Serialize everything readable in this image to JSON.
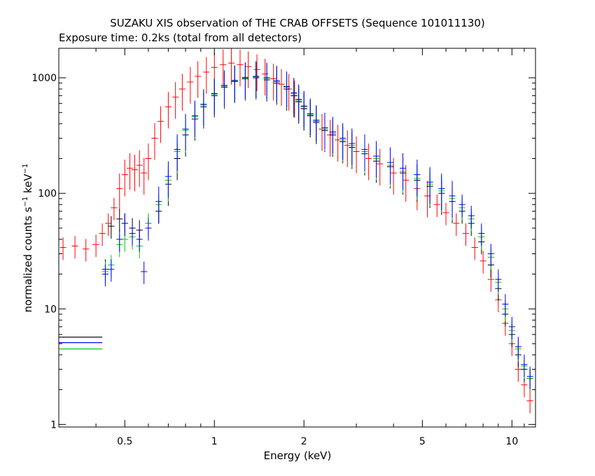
{
  "chart_data": {
    "type": "scatter",
    "title": "SUZAKU XIS observation of THE CRAB OFFSETS (Sequence 101011130)",
    "subtitle": "Exposure time: 0.2ks (total from all detectors)",
    "xlabel": "Energy (keV)",
    "ylabel_main": "normalized counts s",
    "ylabel_exp1": "−1",
    "ylabel_mid": " keV",
    "ylabel_exp2": "−1",
    "x_scale": "log",
    "y_scale": "log",
    "xlim": [
      0.3,
      12
    ],
    "ylim": [
      0.95,
      1800
    ],
    "x_tick_labels": [
      {
        "value": 0.5,
        "label": "0.5"
      },
      {
        "value": 1,
        "label": "1"
      },
      {
        "value": 2,
        "label": "2"
      },
      {
        "value": 5,
        "label": "5"
      },
      {
        "value": 10,
        "label": "10"
      }
    ],
    "y_tick_labels": [
      {
        "value": 1,
        "label": "1"
      },
      {
        "value": 10,
        "label": "10"
      },
      {
        "value": 100,
        "label": "100"
      },
      {
        "value": 1000,
        "label": "1000"
      }
    ],
    "grid": false,
    "series": [
      {
        "color": "#ff0000",
        "x": [
          0.31,
          0.34,
          0.37,
          0.4,
          0.42,
          0.44,
          0.46,
          0.48,
          0.5,
          0.52,
          0.54,
          0.56,
          0.58,
          0.6,
          0.63,
          0.66,
          0.7,
          0.74,
          0.78,
          0.83,
          0.88,
          0.94,
          1.0,
          1.07,
          1.14,
          1.22,
          1.3,
          1.39,
          1.48,
          1.58,
          1.68,
          1.78,
          1.86,
          1.92,
          2.0,
          2.1,
          2.2,
          2.3,
          2.45,
          2.6,
          2.8,
          3.0,
          3.3,
          3.6,
          4.0,
          4.4,
          4.8,
          5.2,
          5.6,
          6.0,
          6.5,
          7.0,
          7.5,
          8.0,
          8.5,
          9.0,
          9.5,
          10.0,
          10.5,
          11.0,
          11.5
        ],
        "y": [
          34,
          35,
          33,
          36,
          45,
          55,
          75,
          110,
          145,
          165,
          160,
          175,
          150,
          200,
          300,
          420,
          560,
          680,
          800,
          920,
          1030,
          1120,
          1230,
          1300,
          1340,
          1300,
          1250,
          1180,
          1080,
          980,
          880,
          800,
          700,
          620,
          540,
          470,
          420,
          360,
          320,
          290,
          260,
          230,
          200,
          180,
          150,
          130,
          110,
          95,
          80,
          68,
          55,
          45,
          34,
          26,
          18,
          12,
          7.5,
          5,
          3,
          2.2,
          1.6
        ]
      },
      {
        "color": "#000000",
        "x": [
          0.43,
          0.45,
          0.48,
          0.5,
          0.53,
          0.56,
          0.6,
          0.65,
          0.7,
          0.75,
          0.8,
          0.86,
          0.92,
          1.0,
          1.08,
          1.17,
          1.27,
          1.38,
          1.5,
          1.62,
          1.75,
          1.85,
          1.92,
          2.0,
          2.1,
          2.2,
          2.35,
          2.5,
          2.7,
          2.9,
          3.2,
          3.5,
          3.9,
          4.3,
          4.8,
          5.3,
          5.8,
          6.3,
          6.8,
          7.3,
          7.9,
          8.5,
          9.0,
          9.5,
          10.0,
          10.5,
          11.0,
          11.5
        ],
        "y": [
          22,
          52,
          60,
          55,
          50,
          48,
          55,
          70,
          120,
          200,
          320,
          440,
          560,
          700,
          830,
          930,
          980,
          1000,
          960,
          900,
          800,
          700,
          620,
          540,
          470,
          410,
          350,
          320,
          280,
          250,
          220,
          190,
          170,
          150,
          130,
          115,
          100,
          85,
          70,
          55,
          38,
          24,
          15,
          9,
          6,
          4,
          3,
          2.5
        ]
      },
      {
        "color": "#00cc00",
        "x": [
          0.43,
          0.45,
          0.48,
          0.5,
          0.53,
          0.56,
          0.6,
          0.65,
          0.7,
          0.75,
          0.8,
          0.86,
          0.92,
          1.0,
          1.08,
          1.17,
          1.27,
          1.38,
          1.5,
          1.62,
          1.75,
          1.85,
          1.92,
          2.0,
          2.1,
          2.2,
          2.35,
          2.5,
          2.7,
          2.9,
          3.2,
          3.5,
          3.9,
          4.3,
          4.8,
          5.3,
          5.8,
          6.3,
          6.8,
          7.3,
          7.9,
          8.5,
          9.0,
          9.5,
          10.0,
          10.5,
          11.0,
          11.5
        ],
        "y": [
          21,
          24,
          36,
          40,
          42,
          35,
          55,
          80,
          130,
          230,
          350,
          460,
          580,
          720,
          850,
          940,
          1000,
          1020,
          990,
          930,
          830,
          730,
          640,
          560,
          480,
          420,
          360,
          330,
          290,
          260,
          230,
          200,
          175,
          155,
          135,
          120,
          105,
          90,
          75,
          60,
          42,
          28,
          17,
          10,
          6.5,
          4.5,
          3.2,
          2.5
        ]
      },
      {
        "color": "#0000ff",
        "x": [
          0.43,
          0.45,
          0.48,
          0.5,
          0.53,
          0.56,
          0.58,
          0.6,
          0.65,
          0.7,
          0.75,
          0.8,
          0.86,
          0.92,
          1.0,
          1.08,
          1.17,
          1.27,
          1.38,
          1.5,
          1.62,
          1.75,
          1.85,
          1.92,
          2.0,
          2.1,
          2.2,
          2.35,
          2.5,
          2.7,
          2.9,
          3.2,
          3.5,
          3.9,
          4.3,
          4.8,
          5.3,
          5.8,
          6.3,
          6.8,
          7.3,
          7.9,
          8.5,
          9.0,
          9.5,
          10.0,
          10.5,
          11.0,
          11.5
        ],
        "y": [
          20,
          22,
          40,
          55,
          45,
          40,
          21,
          50,
          85,
          140,
          240,
          360,
          470,
          590,
          730,
          860,
          950,
          1010,
          1030,
          1000,
          940,
          840,
          740,
          650,
          570,
          490,
          430,
          370,
          340,
          300,
          270,
          240,
          210,
          185,
          165,
          145,
          125,
          110,
          95,
          80,
          64,
          45,
          30,
          18,
          11,
          7,
          4.7,
          3.3,
          2.6
        ]
      }
    ],
    "horizontal_segments": [
      {
        "color": "#000000",
        "x": [
          0.3,
          0.42
        ],
        "y": 5.7
      },
      {
        "color": "#0000ff",
        "x": [
          0.3,
          0.42
        ],
        "y": 5.1
      },
      {
        "color": "#00cc00",
        "x": [
          0.3,
          0.42
        ],
        "y": 4.5
      }
    ]
  }
}
